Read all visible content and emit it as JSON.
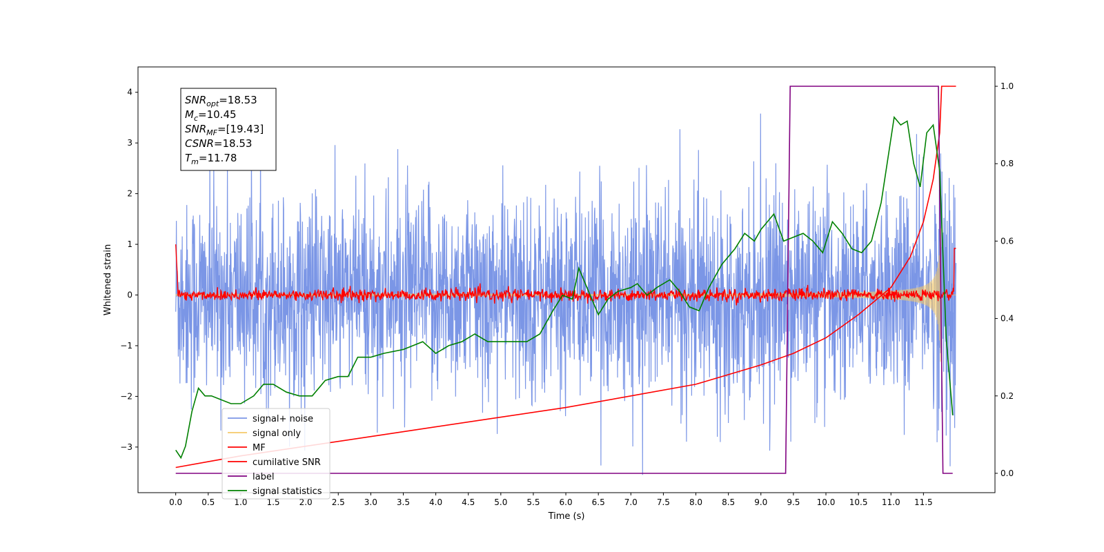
{
  "chart_data": {
    "type": "line",
    "title": "",
    "xlabel": "Time (s)",
    "ylabel": "Whitened strain",
    "xlim": [
      -0.58,
      12.6
    ],
    "ylim": [
      -3.9,
      4.5
    ],
    "y2lim": [
      -0.05,
      1.05
    ],
    "xticks": [
      "0.0",
      "0.5",
      "1.0",
      "1.5",
      "2.0",
      "2.5",
      "3.0",
      "3.5",
      "4.0",
      "4.5",
      "5.0",
      "5.5",
      "6.0",
      "6.5",
      "7.0",
      "7.5",
      "8.0",
      "8.5",
      "9.0",
      "9.5",
      "10.0",
      "10.5",
      "11.0",
      "11.5"
    ],
    "yticks": [
      "−3",
      "−2",
      "−1",
      "0",
      "1",
      "2",
      "3",
      "4"
    ],
    "y2ticks": [
      "0.0",
      "0.2",
      "0.4",
      "0.6",
      "0.8",
      "1.0"
    ],
    "grid": false,
    "legend_position": "lower-left",
    "annotation": {
      "lines": [
        {
          "sym": "SNR",
          "sub": "opt",
          "value": "=18.53"
        },
        {
          "sym": "M",
          "sub": "c",
          "value": "=10.45"
        },
        {
          "sym": "SNR",
          "sub": "MF",
          "value": "=[19.43]"
        },
        {
          "sym": "CSNR",
          "sub": "",
          "value": "=18.53"
        },
        {
          "sym": "T",
          "sub": "m",
          "value": "=11.78"
        }
      ]
    },
    "series": [
      {
        "name": "signal+ noise",
        "color": "#7b96e6",
        "axis": "left",
        "kind": "noise",
        "sigma": 0.95,
        "t_end": 12.0
      },
      {
        "name": "signal only",
        "color": "#f5c96a",
        "axis": "left",
        "kind": "chirp",
        "t_end": 12.0,
        "t_merge": 11.78
      },
      {
        "name": "MF",
        "color": "#ff0000",
        "axis": "left",
        "kind": "mf",
        "baseline": 0.0,
        "noise": 0.06,
        "start_value": 1.0,
        "end_value": 0.92
      },
      {
        "name": "cumilative SNR",
        "color": "#ff0000",
        "axis": "right",
        "x": [
          0.0,
          0.5,
          1.0,
          2.0,
          3.0,
          4.0,
          5.0,
          6.0,
          7.0,
          8.0,
          9.0,
          9.5,
          10.0,
          10.5,
          11.0,
          11.3,
          11.5,
          11.65,
          11.75,
          11.78,
          12.0
        ],
        "values": [
          0.015,
          0.03,
          0.045,
          0.07,
          0.095,
          0.12,
          0.145,
          0.17,
          0.2,
          0.23,
          0.28,
          0.31,
          0.35,
          0.41,
          0.48,
          0.56,
          0.65,
          0.76,
          0.88,
          1.0,
          1.0
        ]
      },
      {
        "name": "label",
        "color": "#800080",
        "axis": "right",
        "x": [
          0.0,
          9.38,
          9.45,
          11.73,
          11.8,
          11.95
        ],
        "values": [
          0.0,
          0.0,
          1.0,
          1.0,
          0.0,
          0.0
        ]
      },
      {
        "name": "signal statistics",
        "color": "#008000",
        "axis": "right",
        "x": [
          0.0,
          0.08,
          0.15,
          0.25,
          0.35,
          0.45,
          0.55,
          0.7,
          0.85,
          1.0,
          1.2,
          1.35,
          1.5,
          1.7,
          1.9,
          2.1,
          2.3,
          2.5,
          2.65,
          2.8,
          3.0,
          3.2,
          3.5,
          3.8,
          4.0,
          4.2,
          4.4,
          4.6,
          4.8,
          5.0,
          5.2,
          5.4,
          5.6,
          5.8,
          5.95,
          6.1,
          6.2,
          6.35,
          6.5,
          6.65,
          6.8,
          7.0,
          7.1,
          7.25,
          7.4,
          7.6,
          7.75,
          7.9,
          8.05,
          8.2,
          8.4,
          8.6,
          8.75,
          8.9,
          9.0,
          9.1,
          9.2,
          9.35,
          9.5,
          9.65,
          9.8,
          9.95,
          10.1,
          10.25,
          10.4,
          10.55,
          10.7,
          10.85,
          10.95,
          11.05,
          11.15,
          11.25,
          11.35,
          11.45,
          11.55,
          11.65,
          11.75,
          11.85,
          11.95
        ],
        "values": [
          0.06,
          0.04,
          0.07,
          0.16,
          0.22,
          0.2,
          0.2,
          0.19,
          0.18,
          0.18,
          0.2,
          0.23,
          0.23,
          0.21,
          0.2,
          0.2,
          0.24,
          0.25,
          0.25,
          0.3,
          0.3,
          0.31,
          0.32,
          0.34,
          0.31,
          0.33,
          0.34,
          0.36,
          0.34,
          0.34,
          0.34,
          0.34,
          0.36,
          0.42,
          0.46,
          0.45,
          0.53,
          0.47,
          0.41,
          0.45,
          0.47,
          0.48,
          0.49,
          0.46,
          0.48,
          0.5,
          0.47,
          0.43,
          0.42,
          0.48,
          0.54,
          0.58,
          0.62,
          0.6,
          0.63,
          0.65,
          0.67,
          0.6,
          0.61,
          0.62,
          0.6,
          0.57,
          0.65,
          0.62,
          0.58,
          0.57,
          0.6,
          0.7,
          0.81,
          0.92,
          0.9,
          0.91,
          0.8,
          0.74,
          0.88,
          0.9,
          0.78,
          0.35,
          0.15
        ]
      }
    ]
  }
}
